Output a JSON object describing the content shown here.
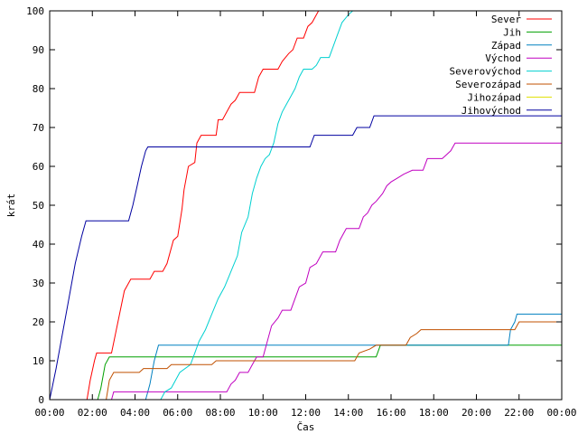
{
  "chart_data": {
    "type": "line",
    "title": "",
    "xlabel": "Čas",
    "ylabel": "krát",
    "xlim": [
      0,
      24
    ],
    "ylim": [
      0,
      100
    ],
    "grid": false,
    "legend_position": "top-right",
    "x_ticks": [
      "00:00",
      "02:00",
      "04:00",
      "06:00",
      "08:00",
      "10:00",
      "12:00",
      "14:00",
      "16:00",
      "18:00",
      "20:00",
      "22:00",
      "00:00"
    ],
    "y_ticks": [
      0,
      10,
      20,
      30,
      40,
      50,
      60,
      70,
      80,
      90,
      100
    ],
    "series": [
      {
        "name": "Sever",
        "color": "#ff0000",
        "points": [
          [
            1.75,
            0
          ],
          [
            1.9,
            5
          ],
          [
            2.1,
            10
          ],
          [
            2.2,
            12
          ],
          [
            2.9,
            12
          ],
          [
            3.2,
            20
          ],
          [
            3.5,
            28
          ],
          [
            3.8,
            31
          ],
          [
            4.7,
            31
          ],
          [
            4.9,
            33
          ],
          [
            5.3,
            33
          ],
          [
            5.5,
            35
          ],
          [
            5.8,
            41
          ],
          [
            6.0,
            42
          ],
          [
            6.2,
            49
          ],
          [
            6.3,
            54
          ],
          [
            6.5,
            60
          ],
          [
            6.8,
            61
          ],
          [
            6.9,
            66
          ],
          [
            7.1,
            68
          ],
          [
            7.8,
            68
          ],
          [
            7.9,
            72
          ],
          [
            8.1,
            72
          ],
          [
            8.3,
            74
          ],
          [
            8.5,
            76
          ],
          [
            8.7,
            77
          ],
          [
            8.9,
            79
          ],
          [
            9.6,
            79
          ],
          [
            9.8,
            83
          ],
          [
            10.0,
            85
          ],
          [
            10.7,
            85
          ],
          [
            10.9,
            87
          ],
          [
            11.2,
            89
          ],
          [
            11.4,
            90
          ],
          [
            11.6,
            93
          ],
          [
            11.9,
            93
          ],
          [
            12.1,
            96
          ],
          [
            12.3,
            97
          ],
          [
            12.6,
            100
          ]
        ]
      },
      {
        "name": "Jih",
        "color": "#00a000",
        "points": [
          [
            2.25,
            0
          ],
          [
            2.4,
            3
          ],
          [
            2.6,
            9
          ],
          [
            2.8,
            11
          ],
          [
            15.3,
            11
          ],
          [
            15.5,
            14
          ],
          [
            24,
            14
          ]
        ]
      },
      {
        "name": "Západ",
        "color": "#0080c0",
        "points": [
          [
            4.5,
            0
          ],
          [
            4.7,
            4
          ],
          [
            4.9,
            10
          ],
          [
            5.1,
            14
          ],
          [
            21.5,
            14
          ],
          [
            21.6,
            18
          ],
          [
            21.8,
            20
          ],
          [
            21.9,
            22
          ],
          [
            24,
            22
          ]
        ]
      },
      {
        "name": "Východ",
        "color": "#c000c0",
        "points": [
          [
            2.9,
            0
          ],
          [
            3.0,
            2
          ],
          [
            8.3,
            2
          ],
          [
            8.5,
            4
          ],
          [
            8.7,
            5
          ],
          [
            8.9,
            7
          ],
          [
            9.3,
            7
          ],
          [
            9.5,
            9
          ],
          [
            9.7,
            11
          ],
          [
            10.0,
            11
          ],
          [
            10.2,
            15
          ],
          [
            10.4,
            19
          ],
          [
            10.7,
            21
          ],
          [
            10.9,
            23
          ],
          [
            11.3,
            23
          ],
          [
            11.5,
            26
          ],
          [
            11.7,
            29
          ],
          [
            12.0,
            30
          ],
          [
            12.2,
            34
          ],
          [
            12.5,
            35
          ],
          [
            12.8,
            38
          ],
          [
            13.4,
            38
          ],
          [
            13.6,
            41
          ],
          [
            13.9,
            44
          ],
          [
            14.5,
            44
          ],
          [
            14.7,
            47
          ],
          [
            14.9,
            48
          ],
          [
            15.1,
            50
          ],
          [
            15.3,
            51
          ],
          [
            15.6,
            53
          ],
          [
            15.8,
            55
          ],
          [
            16.0,
            56
          ],
          [
            16.3,
            57
          ],
          [
            16.6,
            58
          ],
          [
            17.0,
            59
          ],
          [
            17.5,
            59
          ],
          [
            17.7,
            62
          ],
          [
            18.4,
            62
          ],
          [
            18.6,
            63
          ],
          [
            18.8,
            64
          ],
          [
            19.0,
            66
          ],
          [
            24,
            66
          ]
        ]
      },
      {
        "name": "Severovýchod",
        "color": "#00d0d0",
        "points": [
          [
            5.2,
            0
          ],
          [
            5.4,
            2
          ],
          [
            5.7,
            3
          ],
          [
            6.1,
            7
          ],
          [
            6.6,
            9
          ],
          [
            6.8,
            12
          ],
          [
            7.0,
            15
          ],
          [
            7.3,
            18
          ],
          [
            7.6,
            22
          ],
          [
            7.9,
            26
          ],
          [
            8.2,
            29
          ],
          [
            8.5,
            33
          ],
          [
            8.8,
            37
          ],
          [
            9.0,
            43
          ],
          [
            9.3,
            47
          ],
          [
            9.5,
            53
          ],
          [
            9.7,
            57
          ],
          [
            9.9,
            60
          ],
          [
            10.1,
            62
          ],
          [
            10.3,
            63
          ],
          [
            10.5,
            66
          ],
          [
            10.7,
            71
          ],
          [
            10.9,
            74
          ],
          [
            11.1,
            76
          ],
          [
            11.3,
            78
          ],
          [
            11.5,
            80
          ],
          [
            11.7,
            83
          ],
          [
            11.9,
            85
          ],
          [
            12.3,
            85
          ],
          [
            12.5,
            86
          ],
          [
            12.7,
            88
          ],
          [
            13.1,
            88
          ],
          [
            13.3,
            91
          ],
          [
            13.5,
            94
          ],
          [
            13.7,
            97
          ],
          [
            14.0,
            99
          ],
          [
            14.2,
            100
          ]
        ]
      },
      {
        "name": "Severozápad",
        "color": "#c05000",
        "points": [
          [
            2.65,
            0
          ],
          [
            2.8,
            5
          ],
          [
            3.0,
            7
          ],
          [
            4.2,
            7
          ],
          [
            4.4,
            8
          ],
          [
            5.5,
            8
          ],
          [
            5.7,
            9
          ],
          [
            7.6,
            9
          ],
          [
            7.8,
            10
          ],
          [
            14.3,
            10
          ],
          [
            14.5,
            12
          ],
          [
            15.0,
            13
          ],
          [
            15.3,
            14
          ],
          [
            16.7,
            14
          ],
          [
            16.9,
            16
          ],
          [
            17.2,
            17
          ],
          [
            17.4,
            18
          ],
          [
            21.8,
            18
          ],
          [
            22.0,
            20
          ],
          [
            24,
            20
          ]
        ]
      },
      {
        "name": "Jihozápad",
        "color": "#e0e000",
        "points": []
      },
      {
        "name": "Jihovýchod",
        "color": "#0000a0",
        "points": [
          [
            0,
            0
          ],
          [
            0.3,
            8
          ],
          [
            0.6,
            17
          ],
          [
            0.9,
            26
          ],
          [
            1.2,
            35
          ],
          [
            1.5,
            42
          ],
          [
            1.7,
            46
          ],
          [
            3.7,
            46
          ],
          [
            3.9,
            50
          ],
          [
            4.1,
            55
          ],
          [
            4.3,
            60
          ],
          [
            4.5,
            64
          ],
          [
            4.6,
            65
          ],
          [
            12.2,
            65
          ],
          [
            12.4,
            68
          ],
          [
            14.2,
            68
          ],
          [
            14.4,
            70
          ],
          [
            15.0,
            70
          ],
          [
            15.2,
            73
          ],
          [
            24,
            73
          ]
        ]
      }
    ]
  }
}
